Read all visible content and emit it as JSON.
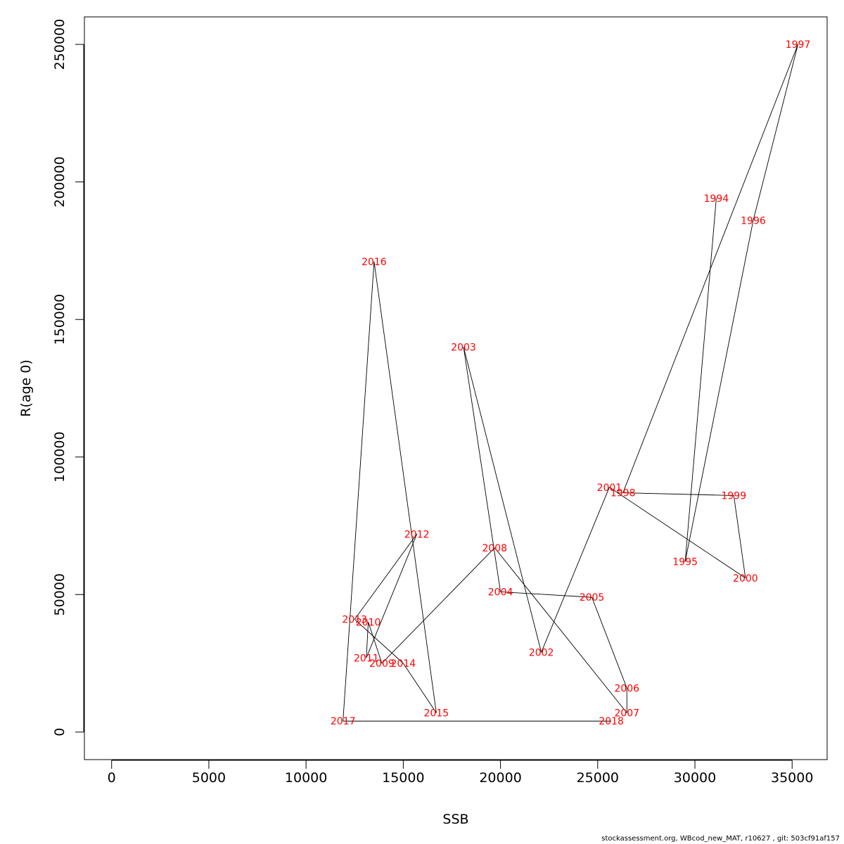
{
  "chart_data": {
    "type": "line",
    "xlabel": "SSB",
    "ylabel": "R(age 0)",
    "xlim": [
      -1400,
      36800
    ],
    "ylim": [
      -10000,
      260000
    ],
    "xticks": [
      0,
      5000,
      10000,
      15000,
      20000,
      25000,
      30000,
      35000
    ],
    "yticks": [
      0,
      50000,
      100000,
      150000,
      200000,
      250000
    ],
    "line_color": "#000000",
    "label_color": "#ff0000",
    "points": [
      {
        "label": "1994",
        "x": 31100,
        "y": 194000
      },
      {
        "label": "1995",
        "x": 29500,
        "y": 62000
      },
      {
        "label": "1996",
        "x": 33000,
        "y": 186000
      },
      {
        "label": "1997",
        "x": 35300,
        "y": 250000
      },
      {
        "label": "1998",
        "x": 26300,
        "y": 87000
      },
      {
        "label": "1999",
        "x": 32000,
        "y": 86000
      },
      {
        "label": "2000",
        "x": 32600,
        "y": 56000
      },
      {
        "label": "2001",
        "x": 25600,
        "y": 89000
      },
      {
        "label": "2002",
        "x": 22100,
        "y": 29000
      },
      {
        "label": "2003",
        "x": 18100,
        "y": 140000
      },
      {
        "label": "2004",
        "x": 20000,
        "y": 51000
      },
      {
        "label": "2005",
        "x": 24700,
        "y": 49000
      },
      {
        "label": "2006",
        "x": 26500,
        "y": 16000
      },
      {
        "label": "2007",
        "x": 26500,
        "y": 7000
      },
      {
        "label": "2008",
        "x": 19700,
        "y": 67000
      },
      {
        "label": "2009",
        "x": 13900,
        "y": 25000
      },
      {
        "label": "2010",
        "x": 13200,
        "y": 40000
      },
      {
        "label": "2011",
        "x": 13100,
        "y": 27000
      },
      {
        "label": "2012",
        "x": 15700,
        "y": 72000
      },
      {
        "label": "2013",
        "x": 12500,
        "y": 41000
      },
      {
        "label": "2014",
        "x": 15000,
        "y": 25000
      },
      {
        "label": "2015",
        "x": 16700,
        "y": 7000
      },
      {
        "label": "2016",
        "x": 13500,
        "y": 171000
      },
      {
        "label": "2017",
        "x": 11900,
        "y": 4000
      },
      {
        "label": "2018",
        "x": 25700,
        "y": 4000
      }
    ]
  },
  "footer": "stockassessment.org, WBcod_new_MAT, r10627 , git: 503cf91af157"
}
